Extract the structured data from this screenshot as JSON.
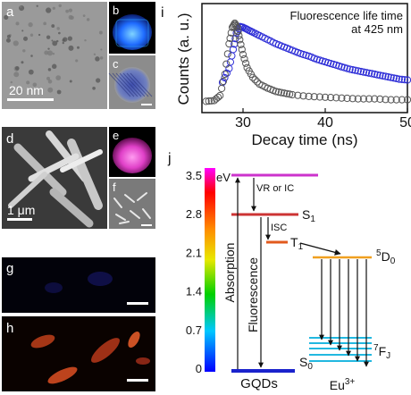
{
  "panels": {
    "a": {
      "label": "a",
      "scale": "20 nm"
    },
    "b": {
      "label": "b"
    },
    "c": {
      "label": "c"
    },
    "d": {
      "label": "d",
      "scale": "1 μm"
    },
    "e": {
      "label": "e"
    },
    "f": {
      "label": "f"
    },
    "g": {
      "label": "g"
    },
    "h": {
      "label": "h"
    },
    "i": {
      "label": "i"
    },
    "j": {
      "label": "j"
    }
  },
  "chart_data": {
    "type": "scatter",
    "title": "",
    "annotation_line1": "Fluorescence life time",
    "annotation_line2": "at 425 nm",
    "xlabel": "Decay time (ns)",
    "ylabel": "Counts (a. u.)",
    "xlim": [
      25,
      50
    ],
    "xticks": [
      "30",
      "40",
      "50"
    ],
    "ylim": [
      0,
      1
    ],
    "series": [
      {
        "color": "#2b2bd6",
        "x": [
          27.5,
          28.3,
          28.8,
          29.2,
          29.6,
          30.0,
          30.6,
          31.2,
          32.0,
          33.0,
          34.0,
          35.0,
          36.0,
          37.0,
          38.0,
          39.0,
          40.0,
          41.0,
          42.0,
          43.0,
          44.0,
          45.0,
          46.0,
          47.0,
          48.0,
          49.0,
          50.0
        ],
        "y": [
          0.28,
          0.45,
          0.68,
          0.88,
          0.96,
          0.95,
          0.92,
          0.89,
          0.85,
          0.8,
          0.75,
          0.71,
          0.67,
          0.63,
          0.6,
          0.56,
          0.53,
          0.5,
          0.47,
          0.44,
          0.42,
          0.4,
          0.38,
          0.36,
          0.34,
          0.32,
          0.31
        ]
      },
      {
        "color": "#555555",
        "x": [
          25.5,
          26.5,
          27.2,
          27.8,
          28.3,
          28.7,
          29.0,
          29.3,
          29.6,
          30.0,
          30.5,
          31.2,
          32.0,
          33.0,
          34.0,
          35.0,
          36.0,
          38.0,
          40.0,
          42.0,
          44.0,
          46.0,
          48.0,
          50.0
        ],
        "y": [
          0.05,
          0.06,
          0.12,
          0.38,
          0.75,
          0.95,
          1.0,
          0.95,
          0.8,
          0.62,
          0.46,
          0.34,
          0.26,
          0.21,
          0.17,
          0.15,
          0.13,
          0.11,
          0.1,
          0.09,
          0.08,
          0.08,
          0.07,
          0.07
        ]
      }
    ]
  },
  "diagram": {
    "scale_unit": "eV",
    "scale_ticks": [
      "3.5",
      "2.8",
      "2.1",
      "1.4",
      "0.7",
      "0"
    ],
    "levels": {
      "s1": "S1",
      "t1": "T1",
      "s0": "S0",
      "d0": "5D0",
      "fj": "7FJ"
    },
    "labels": {
      "vr_ic": "VR or IC",
      "isc": "ISC",
      "absorption": "Absorption",
      "fluorescence": "Fluorescence",
      "gqds": "GQDs",
      "eu": "Eu3+"
    },
    "colors": {
      "s2": "#cc33cc",
      "s1": "#cc3333",
      "t1": "#e25a1d",
      "s0": "#1a22cc",
      "d0": "#f0a020",
      "fj": "#22b8e0"
    }
  }
}
